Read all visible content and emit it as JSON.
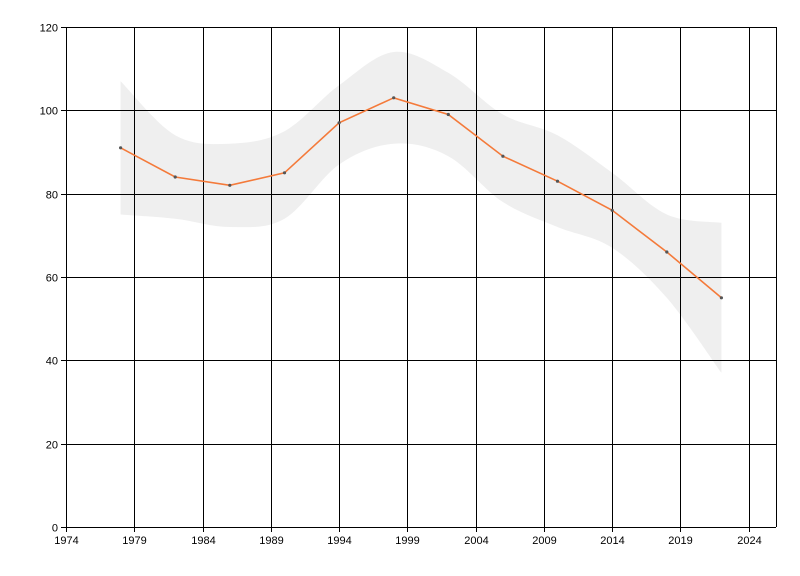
{
  "chart_data": {
    "type": "line",
    "title": "",
    "xlabel": "",
    "ylabel": "",
    "xlim": [
      1974,
      2026
    ],
    "ylim": [
      0,
      120
    ],
    "x_ticks": [
      1974,
      1979,
      1984,
      1989,
      1994,
      1999,
      2004,
      2009,
      2014,
      2019,
      2024
    ],
    "y_ticks": [
      0,
      20,
      40,
      60,
      80,
      100,
      120
    ],
    "x_tick_labels": [
      "1974",
      "1979",
      "1984",
      "1989",
      "1994",
      "1999",
      "2004",
      "2009",
      "2014",
      "2019",
      "2024"
    ],
    "y_tick_labels": [
      "0",
      "20",
      "40",
      "60",
      "80",
      "100",
      "120"
    ],
    "grid": true,
    "legend": "none",
    "colors": {
      "line": "#f47a3a",
      "band": "#efefef",
      "grid": "#000000",
      "point": "#555555"
    },
    "series": [
      {
        "x": [
          1978,
          1982,
          1986,
          1990,
          1994,
          1998,
          2002,
          2006,
          2010,
          2014,
          2018,
          2022
        ],
        "values": [
          91,
          84,
          82,
          85,
          97,
          103,
          99,
          89,
          83,
          76,
          66,
          55
        ],
        "upper": [
          107,
          94,
          92,
          95,
          106,
          114,
          109,
          99,
          94,
          85,
          75,
          73
        ],
        "lower": [
          75,
          74,
          72,
          74,
          87,
          92,
          89,
          78,
          72,
          67,
          55,
          37
        ]
      }
    ]
  }
}
